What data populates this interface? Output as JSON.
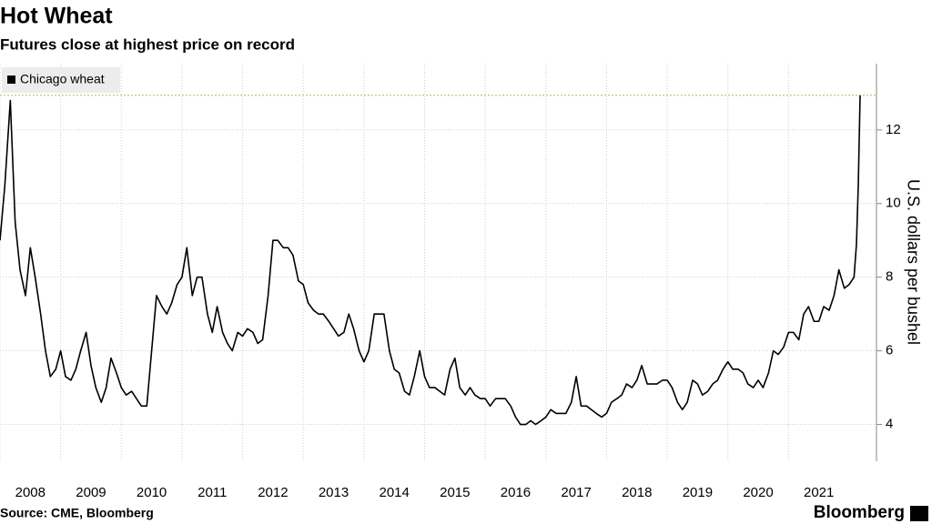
{
  "chart_data": {
    "type": "line",
    "title": "Hot Wheat",
    "subtitle": "Futures close at highest price on record",
    "y_label": "U.S. dollars per bushel",
    "source": "Source: CME, Bloomberg",
    "brand": "Bloomberg",
    "grid": true,
    "legend_position": "upper left",
    "xlim": [
      2008.0,
      2022.45
    ],
    "xticks": [
      2008,
      2009,
      2010,
      2011,
      2012,
      2013,
      2014,
      2015,
      2016,
      2017,
      2018,
      2019,
      2020,
      2021
    ],
    "ylim": [
      3.0,
      13.8
    ],
    "yticks": [
      4,
      6,
      8,
      10,
      12
    ],
    "reference_line": {
      "value": 12.94,
      "color": "#8fd14f"
    },
    "x": [
      2008.0,
      2008.08,
      2008.17,
      2008.25,
      2008.33,
      2008.42,
      2008.5,
      2008.58,
      2008.67,
      2008.75,
      2008.83,
      2008.92,
      2009.0,
      2009.08,
      2009.17,
      2009.25,
      2009.33,
      2009.42,
      2009.5,
      2009.58,
      2009.67,
      2009.75,
      2009.83,
      2009.92,
      2010.0,
      2010.08,
      2010.17,
      2010.25,
      2010.33,
      2010.42,
      2010.5,
      2010.58,
      2010.67,
      2010.75,
      2010.83,
      2010.92,
      2011.0,
      2011.08,
      2011.17,
      2011.25,
      2011.33,
      2011.42,
      2011.5,
      2011.58,
      2011.67,
      2011.75,
      2011.83,
      2011.92,
      2012.0,
      2012.08,
      2012.17,
      2012.25,
      2012.33,
      2012.42,
      2012.5,
      2012.58,
      2012.67,
      2012.75,
      2012.83,
      2012.92,
      2013.0,
      2013.08,
      2013.17,
      2013.25,
      2013.33,
      2013.42,
      2013.5,
      2013.58,
      2013.67,
      2013.75,
      2013.83,
      2013.92,
      2014.0,
      2014.08,
      2014.17,
      2014.25,
      2014.33,
      2014.42,
      2014.5,
      2014.58,
      2014.67,
      2014.75,
      2014.83,
      2014.92,
      2015.0,
      2015.08,
      2015.17,
      2015.25,
      2015.33,
      2015.42,
      2015.5,
      2015.58,
      2015.67,
      2015.75,
      2015.83,
      2015.92,
      2016.0,
      2016.08,
      2016.17,
      2016.25,
      2016.33,
      2016.42,
      2016.5,
      2016.58,
      2016.67,
      2016.75,
      2016.83,
      2016.92,
      2017.0,
      2017.08,
      2017.17,
      2017.25,
      2017.33,
      2017.42,
      2017.5,
      2017.58,
      2017.67,
      2017.75,
      2017.83,
      2017.92,
      2018.0,
      2018.08,
      2018.17,
      2018.25,
      2018.33,
      2018.42,
      2018.5,
      2018.58,
      2018.67,
      2018.75,
      2018.83,
      2018.92,
      2019.0,
      2019.08,
      2019.17,
      2019.25,
      2019.33,
      2019.42,
      2019.5,
      2019.58,
      2019.67,
      2019.75,
      2019.83,
      2019.92,
      2020.0,
      2020.08,
      2020.17,
      2020.25,
      2020.33,
      2020.42,
      2020.5,
      2020.58,
      2020.67,
      2020.75,
      2020.83,
      2020.92,
      2021.0,
      2021.08,
      2021.17,
      2021.25,
      2021.33,
      2021.42,
      2021.5,
      2021.58,
      2021.67,
      2021.75,
      2021.83,
      2021.92,
      2022.0,
      2022.08,
      2022.12,
      2022.15,
      2022.18
    ],
    "series": [
      {
        "name": "Chicago wheat",
        "color": "#000000",
        "values": [
          9.0,
          10.5,
          12.8,
          9.5,
          8.2,
          7.5,
          8.8,
          8.0,
          7.0,
          6.0,
          5.3,
          5.5,
          6.0,
          5.3,
          5.2,
          5.5,
          6.0,
          6.5,
          5.6,
          5.0,
          4.6,
          5.0,
          5.8,
          5.4,
          5.0,
          4.8,
          4.9,
          4.7,
          4.5,
          4.5,
          6.0,
          7.5,
          7.2,
          7.0,
          7.3,
          7.8,
          8.0,
          8.8,
          7.5,
          8.0,
          8.0,
          7.0,
          6.5,
          7.2,
          6.5,
          6.2,
          6.0,
          6.5,
          6.4,
          6.6,
          6.5,
          6.2,
          6.3,
          7.5,
          9.0,
          9.0,
          8.8,
          8.8,
          8.6,
          7.9,
          7.8,
          7.3,
          7.1,
          7.0,
          7.0,
          6.8,
          6.6,
          6.4,
          6.5,
          7.0,
          6.6,
          6.0,
          5.7,
          6.0,
          7.0,
          7.0,
          7.0,
          6.0,
          5.5,
          5.4,
          4.9,
          4.8,
          5.3,
          6.0,
          5.3,
          5.0,
          5.0,
          4.9,
          4.8,
          5.5,
          5.8,
          5.0,
          4.8,
          5.0,
          4.8,
          4.7,
          4.7,
          4.5,
          4.7,
          4.7,
          4.7,
          4.5,
          4.2,
          4.0,
          4.0,
          4.1,
          4.0,
          4.1,
          4.2,
          4.4,
          4.3,
          4.3,
          4.3,
          4.6,
          5.3,
          4.5,
          4.5,
          4.4,
          4.3,
          4.2,
          4.3,
          4.6,
          4.7,
          4.8,
          5.1,
          5.0,
          5.2,
          5.6,
          5.1,
          5.1,
          5.1,
          5.2,
          5.2,
          5.0,
          4.6,
          4.4,
          4.6,
          5.2,
          5.1,
          4.8,
          4.9,
          5.1,
          5.2,
          5.5,
          5.7,
          5.5,
          5.5,
          5.4,
          5.1,
          5.0,
          5.2,
          5.0,
          5.4,
          6.0,
          5.9,
          6.1,
          6.5,
          6.5,
          6.3,
          7.0,
          7.2,
          6.8,
          6.8,
          7.2,
          7.1,
          7.5,
          8.2,
          7.7,
          7.8,
          8.0,
          8.9,
          10.5,
          12.94
        ]
      }
    ]
  }
}
